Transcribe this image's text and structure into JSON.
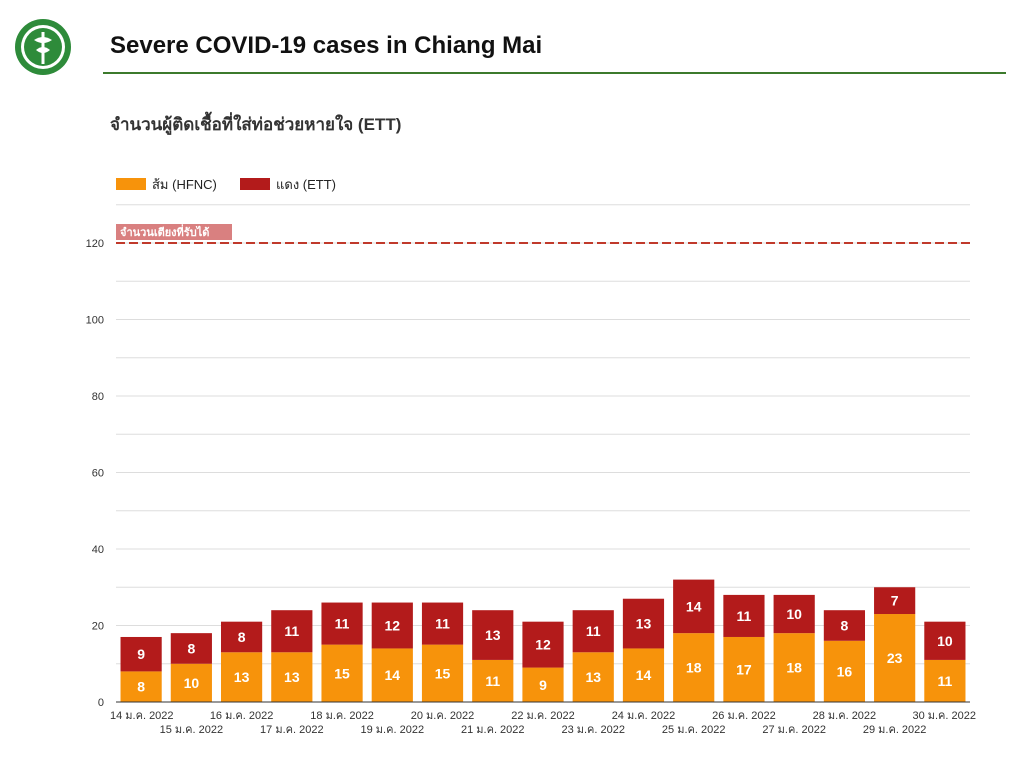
{
  "header": {
    "title": "Severe COVID-19 cases in Chiang Mai",
    "logo_icon": "moph-emblem-icon"
  },
  "colors": {
    "hfnc": "#f7930b",
    "ett": "#b31b1b",
    "capacity_line": "#c0392b",
    "capacity_label_bg": "#d98080",
    "title_rule": "#3c7a2c"
  },
  "chart_data": {
    "type": "bar",
    "stacked": true,
    "title": "จำนวนผู้ติดเชื้อที่ใส่ท่อช่วยหายใจ (ETT)",
    "legend_position": "top-left",
    "grid": true,
    "ylim": [
      0,
      130
    ],
    "yticks": [
      0,
      20,
      40,
      60,
      80,
      100,
      120
    ],
    "categories": [
      "14 ม.ค. 2022",
      "15 ม.ค. 2022",
      "16 ม.ค. 2022",
      "17 ม.ค. 2022",
      "18 ม.ค. 2022",
      "19 ม.ค. 2022",
      "20 ม.ค. 2022",
      "21 ม.ค. 2022",
      "22 ม.ค. 2022",
      "23 ม.ค. 2022",
      "24 ม.ค. 2022",
      "25 ม.ค. 2022",
      "26 ม.ค. 2022",
      "27 ม.ค. 2022",
      "28 ม.ค. 2022",
      "29 ม.ค. 2022",
      "30 ม.ค. 2022"
    ],
    "series": [
      {
        "name": "ส้ม (HFNC)",
        "values": [
          8,
          10,
          13,
          13,
          15,
          14,
          15,
          11,
          9,
          13,
          14,
          18,
          17,
          18,
          16,
          23,
          11
        ]
      },
      {
        "name": "แดง (ETT)",
        "values": [
          9,
          8,
          8,
          11,
          11,
          12,
          11,
          13,
          12,
          11,
          13,
          14,
          11,
          10,
          8,
          7,
          10
        ]
      }
    ],
    "reference_line": {
      "value": 120,
      "label": "จำนวนเตียงที่รับได้"
    }
  }
}
